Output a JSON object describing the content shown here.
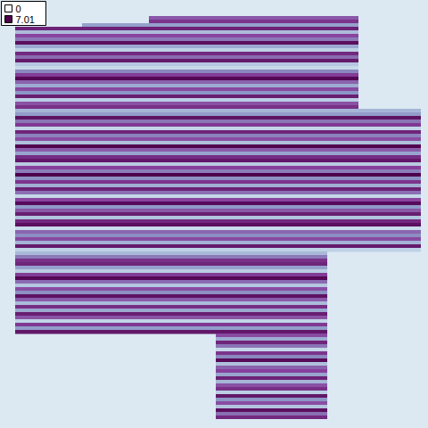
{
  "chart_data": {
    "type": "heatmap",
    "tick_labels": false,
    "xlim": [
      0,
      91
    ],
    "ylim": [
      0,
      113
    ],
    "colorbar": {
      "range": [
        0,
        7.01
      ],
      "ticks": [
        0,
        7.01
      ]
    },
    "stripes": [
      [
        0,
        30,
        77,
        4.8
      ],
      [
        1,
        30,
        77,
        5.6
      ],
      [
        2,
        15,
        77,
        3.2
      ],
      [
        3,
        0,
        77,
        6.1
      ],
      [
        4,
        0,
        77,
        2.4
      ],
      [
        5,
        0,
        77,
        5.2
      ],
      [
        6,
        0,
        77,
        4.1
      ],
      [
        7,
        0,
        77,
        6.6
      ],
      [
        8,
        0,
        77,
        3.0
      ],
      [
        9,
        0,
        77,
        1.8
      ],
      [
        10,
        0,
        77,
        5.9
      ],
      [
        11,
        0,
        77,
        4.4
      ],
      [
        12,
        0,
        77,
        6.3
      ],
      [
        13,
        0,
        77,
        2.1
      ],
      [
        14,
        0,
        77,
        1.5
      ],
      [
        15,
        0,
        77,
        3.8
      ],
      [
        16,
        0,
        77,
        5.4
      ],
      [
        17,
        0,
        77,
        6.8
      ],
      [
        18,
        0,
        77,
        4.6
      ],
      [
        19,
        0,
        77,
        2.9
      ],
      [
        20,
        0,
        77,
        5.1
      ],
      [
        21,
        0,
        77,
        3.5
      ],
      [
        22,
        0,
        77,
        6.2
      ],
      [
        23,
        0,
        77,
        1.9
      ],
      [
        24,
        0,
        77,
        4.9
      ],
      [
        25,
        0,
        77,
        5.7
      ],
      [
        26,
        0,
        91,
        2.6
      ],
      [
        27,
        0,
        91,
        3.3
      ],
      [
        28,
        0,
        91,
        6.5
      ],
      [
        29,
        0,
        91,
        4.2
      ],
      [
        30,
        0,
        91,
        5.5
      ],
      [
        31,
        0,
        91,
        1.7
      ],
      [
        32,
        0,
        91,
        6.0
      ],
      [
        33,
        0,
        91,
        3.9
      ],
      [
        34,
        0,
        91,
        5.0
      ],
      [
        35,
        0,
        91,
        2.3
      ],
      [
        36,
        0,
        91,
        6.9
      ],
      [
        37,
        0,
        91,
        4.7
      ],
      [
        38,
        0,
        91,
        3.1
      ],
      [
        39,
        0,
        91,
        5.8
      ],
      [
        40,
        0,
        91,
        6.4
      ],
      [
        41,
        0,
        91,
        2.0
      ],
      [
        42,
        0,
        91,
        5.3
      ],
      [
        43,
        0,
        91,
        4.0
      ],
      [
        44,
        0,
        91,
        7.01
      ],
      [
        45,
        0,
        91,
        3.6
      ],
      [
        46,
        0,
        91,
        5.6
      ],
      [
        47,
        0,
        91,
        2.8
      ],
      [
        48,
        0,
        91,
        6.1
      ],
      [
        49,
        0,
        91,
        4.3
      ],
      [
        50,
        0,
        91,
        1.6
      ],
      [
        51,
        0,
        91,
        5.2
      ],
      [
        52,
        0,
        91,
        6.7
      ],
      [
        53,
        0,
        91,
        3.4
      ],
      [
        54,
        0,
        91,
        4.8
      ],
      [
        55,
        0,
        91,
        6.2
      ],
      [
        56,
        0,
        91,
        2.2
      ],
      [
        57,
        0,
        91,
        5.9
      ],
      [
        58,
        0,
        91,
        6.6
      ],
      [
        59,
        0,
        91,
        1.4
      ],
      [
        60,
        0,
        91,
        4.5
      ],
      [
        61,
        0,
        91,
        3.7
      ],
      [
        62,
        0,
        91,
        5.1
      ],
      [
        63,
        0,
        91,
        2.7
      ],
      [
        64,
        0,
        91,
        6.3
      ],
      [
        65,
        0,
        91,
        1.8
      ],
      [
        66,
        0,
        70,
        2.5
      ],
      [
        67,
        0,
        70,
        4.1
      ],
      [
        68,
        0,
        70,
        5.7
      ],
      [
        69,
        0,
        70,
        6.0
      ],
      [
        70,
        0,
        70,
        3.2
      ],
      [
        71,
        0,
        70,
        1.9
      ],
      [
        72,
        0,
        70,
        5.4
      ],
      [
        73,
        0,
        70,
        6.8
      ],
      [
        74,
        0,
        70,
        4.4
      ],
      [
        75,
        0,
        70,
        2.1
      ],
      [
        76,
        0,
        70,
        5.0
      ],
      [
        77,
        0,
        70,
        3.6
      ],
      [
        78,
        0,
        70,
        6.5
      ],
      [
        79,
        0,
        70,
        4.7
      ],
      [
        80,
        0,
        70,
        2.4
      ],
      [
        81,
        0,
        70,
        5.8
      ],
      [
        82,
        0,
        70,
        3.0
      ],
      [
        83,
        0,
        70,
        6.2
      ],
      [
        84,
        0,
        70,
        4.9
      ],
      [
        85,
        0,
        70,
        1.7
      ],
      [
        86,
        0,
        70,
        5.5
      ],
      [
        87,
        0,
        70,
        3.3
      ],
      [
        88,
        0,
        70,
        6.4
      ],
      [
        89,
        45,
        70,
        5.1
      ],
      [
        90,
        45,
        70,
        2.9
      ],
      [
        91,
        45,
        70,
        6.0
      ],
      [
        92,
        45,
        70,
        4.2
      ],
      [
        93,
        45,
        70,
        1.6
      ],
      [
        94,
        45,
        70,
        5.6
      ],
      [
        95,
        45,
        70,
        3.8
      ],
      [
        96,
        45,
        70,
        6.7
      ],
      [
        97,
        45,
        70,
        2.3
      ],
      [
        98,
        45,
        70,
        4.6
      ],
      [
        99,
        45,
        70,
        5.3
      ],
      [
        100,
        45,
        70,
        3.1
      ],
      [
        101,
        45,
        70,
        6.1
      ],
      [
        102,
        45,
        70,
        2.6
      ],
      [
        103,
        45,
        70,
        4.9
      ],
      [
        104,
        45,
        70,
        5.7
      ],
      [
        105,
        45,
        70,
        1.9
      ],
      [
        106,
        45,
        70,
        6.4
      ],
      [
        107,
        45,
        70,
        3.5
      ],
      [
        108,
        45,
        70,
        5.0
      ],
      [
        109,
        45,
        70,
        2.2
      ],
      [
        110,
        45,
        70,
        6.6
      ],
      [
        111,
        45,
        70,
        4.3
      ],
      [
        112,
        45,
        70,
        5.9
      ]
    ]
  }
}
